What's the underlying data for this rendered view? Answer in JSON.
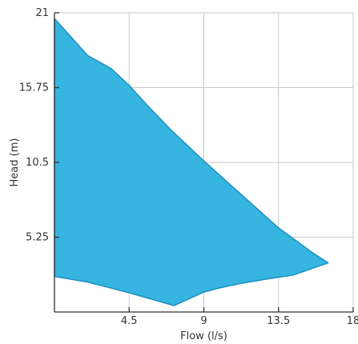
{
  "chart_data": {
    "type": "area",
    "title": "",
    "xlabel": "Flow (l/s)",
    "ylabel": "Head (m)",
    "xlim": [
      0,
      18
    ],
    "ylim": [
      0,
      21
    ],
    "xticks": [
      4.5,
      9,
      13.5,
      18
    ],
    "yticks": [
      5.25,
      10.5,
      15.75,
      21
    ],
    "xtick_labels": [
      "4.5",
      "9",
      "13.5",
      "18"
    ],
    "ytick_labels": [
      "5.25",
      "10.5",
      "15.75",
      "21"
    ],
    "grid": true,
    "fill_color": "#35b5e0",
    "edge_color": "#1f8fc0",
    "grid_color": "#c8c8c8",
    "axis_color": "#333333",
    "upper_boundary": [
      {
        "x": 0.0,
        "y": 20.6
      },
      {
        "x": 1.0,
        "y": 19.3
      },
      {
        "x": 2.0,
        "y": 18.0
      },
      {
        "x": 3.4,
        "y": 17.1
      },
      {
        "x": 4.5,
        "y": 15.9
      },
      {
        "x": 5.6,
        "y": 14.5
      },
      {
        "x": 7.0,
        "y": 12.8
      },
      {
        "x": 9.0,
        "y": 10.6
      },
      {
        "x": 11.3,
        "y": 8.2
      },
      {
        "x": 13.5,
        "y": 5.9
      },
      {
        "x": 15.5,
        "y": 4.2
      },
      {
        "x": 16.5,
        "y": 3.45
      }
    ],
    "lower_boundary": [
      {
        "x": 16.5,
        "y": 3.45
      },
      {
        "x": 14.4,
        "y": 2.6
      },
      {
        "x": 13.0,
        "y": 2.35
      },
      {
        "x": 11.2,
        "y": 2.0
      },
      {
        "x": 10.0,
        "y": 1.7
      },
      {
        "x": 9.0,
        "y": 1.4
      },
      {
        "x": 7.2,
        "y": 0.45
      },
      {
        "x": 4.5,
        "y": 1.35
      },
      {
        "x": 2.0,
        "y": 2.1
      },
      {
        "x": 0.0,
        "y": 2.5
      }
    ]
  }
}
